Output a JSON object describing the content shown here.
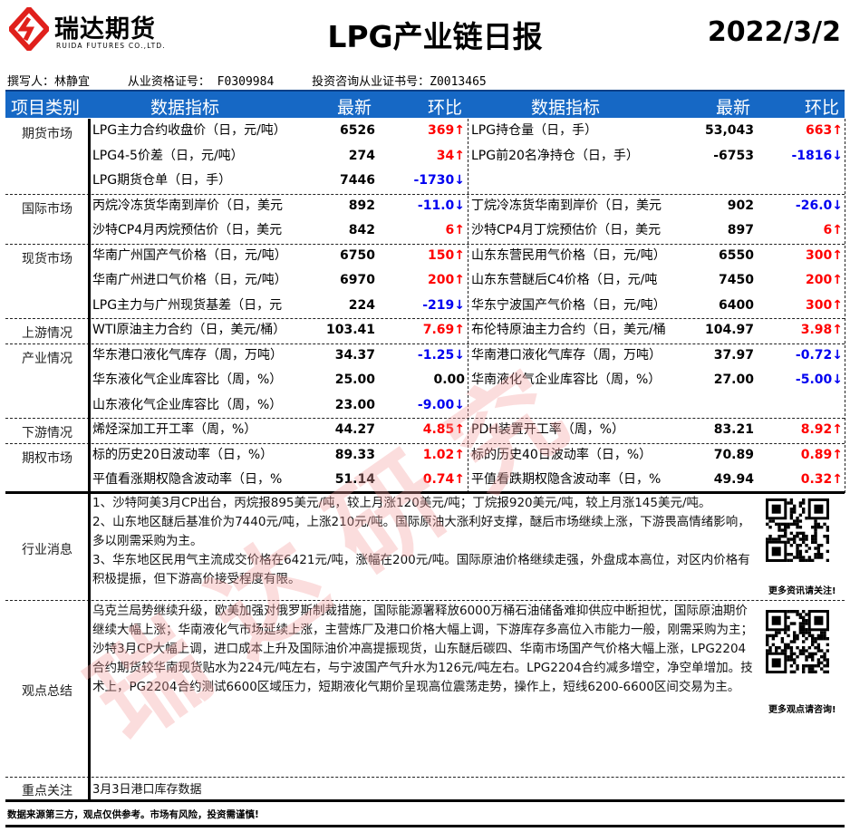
{
  "header": {
    "logo_cn": "瑞达期货",
    "logo_en": "RUIDA FUTURES CO.,LTD.",
    "title": "LPG产业链日报",
    "date": "2022/3/2"
  },
  "meta": {
    "author": "撰写人：林静宜",
    "qualification": "从业资格证号：  F0309984",
    "consulting": "投资咨询从业证书号：Z0013465"
  },
  "columns": {
    "category": "项目类别",
    "indicator": "数据指标",
    "latest": "最新",
    "change": "环比",
    "indicator2": "数据指标",
    "latest2": "最新",
    "change2": "环比"
  },
  "colors": {
    "header_bg": "#1668c5",
    "up": "#ff0000",
    "down": "#0000f0",
    "watermark": "#f4a0a0"
  },
  "groups": [
    {
      "category": "期货市场",
      "rows": [
        {
          "left": {
            "name": "LPG主力合约收盘价（日，元/吨）",
            "latest": "6526",
            "change": "369↑",
            "dir": "up"
          },
          "right": {
            "name": "LPG持仓量（日，手）",
            "latest": "53,043",
            "change": "663↑",
            "dir": "up"
          }
        },
        {
          "left": {
            "name": "LPG4-5价差（日，元/吨）",
            "latest": "274",
            "change": "34↑",
            "dir": "up"
          },
          "right": {
            "name": "LPG前20名净持仓（日，手）",
            "latest": "-6753",
            "change": "-1816↓",
            "dir": "down"
          }
        },
        {
          "left": {
            "name": "LPG期货仓单（日，手）",
            "latest": "7446",
            "change": "-1730↓",
            "dir": "down"
          },
          "right": null
        }
      ]
    },
    {
      "category": "国际市场",
      "rows": [
        {
          "left": {
            "name": "丙烷冷冻货华南到岸价（日，美元",
            "latest": "892",
            "change": "-11.0↓",
            "dir": "down"
          },
          "right": {
            "name": "丁烷冷冻货华南到岸价（日，美元",
            "latest": "902",
            "change": "-26.0↓",
            "dir": "down"
          }
        },
        {
          "left": {
            "name": "沙特CP4月丙烷预估价（日，美元",
            "latest": "842",
            "change": "6↑",
            "dir": "up"
          },
          "right": {
            "name": "沙特CP4月丁烷预估价（日，美元",
            "latest": "897",
            "change": "6↑",
            "dir": "up"
          }
        }
      ]
    },
    {
      "category": "现货市场",
      "rows": [
        {
          "left": {
            "name": "华南广州国产气价格（日，元/吨）",
            "latest": "6750",
            "change": "150↑",
            "dir": "up"
          },
          "right": {
            "name": "山东东营民用气价格（日，元/吨）",
            "latest": "6550",
            "change": "300↑",
            "dir": "up"
          }
        },
        {
          "left": {
            "name": "华南广州进口气价格（日，元/吨）",
            "latest": "6970",
            "change": "200↑",
            "dir": "up"
          },
          "right": {
            "name": "山东东营醚后C4价格（日，元/吨",
            "latest": "7450",
            "change": "200↑",
            "dir": "up"
          }
        },
        {
          "left": {
            "name": "LPG主力与广州现货基差（日，元",
            "latest": "224",
            "change": "-219↓",
            "dir": "down"
          },
          "right": {
            "name": "华东宁波国产气价格（日，元/吨）",
            "latest": "6400",
            "change": "300↑",
            "dir": "up"
          }
        }
      ]
    },
    {
      "category": "上游情况",
      "rows": [
        {
          "left": {
            "name": "WTI原油主力合约（日，美元/桶）",
            "latest": "103.41",
            "change": "7.69↑",
            "dir": "up"
          },
          "right": {
            "name": "布伦特原油主力合约（日，美元/桶",
            "latest": "104.97",
            "change": "3.98↑",
            "dir": "up"
          }
        }
      ]
    },
    {
      "category": "产业情况",
      "rows": [
        {
          "left": {
            "name": "华东港口液化气库存（周，万吨）",
            "latest": "34.37",
            "change": "-1.25↓",
            "dir": "down"
          },
          "right": {
            "name": "华南港口液化气库存（周，万吨）",
            "latest": "37.97",
            "change": "-0.72↓",
            "dir": "down"
          }
        },
        {
          "left": {
            "name": "华东液化气企业库容比（周，%）",
            "latest": "25.00",
            "change": "0.00",
            "dir": "flat"
          },
          "right": {
            "name": "华南液化气企业库容比（周，%）",
            "latest": "27.00",
            "change": "-5.00↓",
            "dir": "down"
          }
        },
        {
          "left": {
            "name": "山东液化气企业库容比（周，%）",
            "latest": "23.00",
            "change": "-9.00↓",
            "dir": "down"
          },
          "right": null
        }
      ]
    },
    {
      "category": "下游情况",
      "rows": [
        {
          "left": {
            "name": "烯烃深加工开工率（周，%）",
            "latest": "44.27",
            "change": "4.85↑",
            "dir": "up"
          },
          "right": {
            "name": "PDH装置开工率（周，%）",
            "latest": "83.21",
            "change": "8.92↑",
            "dir": "up"
          }
        }
      ]
    },
    {
      "category": "期权市场",
      "rows": [
        {
          "left": {
            "name": "标的历史20日波动率（日，%）",
            "latest": "89.33",
            "change": "1.02↑",
            "dir": "up"
          },
          "right": {
            "name": "标的历史40日波动率（日，%）",
            "latest": "70.89",
            "change": "0.89↑",
            "dir": "up"
          }
        },
        {
          "left": {
            "name": "平值看涨期权隐含波动率（日，%",
            "latest": "51.14",
            "change": "0.74↑",
            "dir": "up"
          },
          "right": {
            "name": "平值看跌期权隐含波动率（日，%",
            "latest": "49.94",
            "change": "0.32↑",
            "dir": "up"
          }
        }
      ]
    }
  ],
  "news": {
    "category": "行业消息",
    "items": [
      "1、沙特阿美3月CP出台，丙烷报895美元/吨，较上月涨120美元/吨；丁烷报920美元/吨，较上月涨145美元/吨。",
      "2、山东地区醚后基准价为7440元/吨，上涨210元/吨。国际原油大涨利好支撑，醚后市场继续上涨，下游畏高情绪影响，多以刚需采购为主。",
      "3、华东地区民用气主流成交价格在6421元/吨，涨幅在200元/吨。国际原油价格继续走强，外盘成本高位，对区内价格有积极提振，但下游高价接受程度有限。"
    ],
    "qr_caption": "更多资讯请关注!"
  },
  "view": {
    "category": "观点总结",
    "text": "乌克兰局势继续升级，欧美加强对俄罗斯制裁措施，国际能源署释放6000万桶石油储备难抑供应中断担忧，国际原油期价继续大幅上涨；华南液化气市场延续上涨，主营炼厂及港口价格大幅上调，下游库存多高位入市能力一般，刚需采购为主；沙特3月CP大幅上调，进口成本上升及国际油价冲高提振现货，山东醚后碳四、华南市场国产气价格大幅上涨，LPG2204合约期货较华南现货贴水为224元/吨左右，与宁波国产气升水为126元/吨左右。LPG2204合约减多增空，净空单增加。技术上，PG2204合约测试6600区域压力，短期液化气期价呈现高位震荡走势，操作上，短线6200-6600区间交易为主。",
    "qr_caption": "更多观点请咨询!"
  },
  "focus": {
    "category": "重点关注",
    "text": "3月3日港口库存数据"
  },
  "disclaimer": "数据来源第三方，观点仅供参考。市场有风险，投资需谨慎!",
  "watermark": "瑞达研究"
}
